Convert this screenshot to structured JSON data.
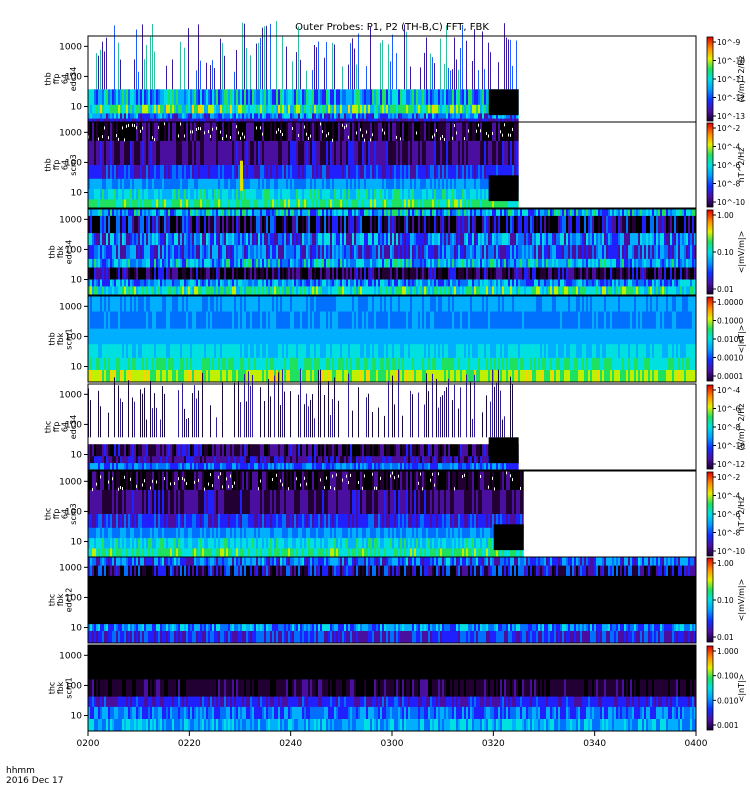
{
  "title": "Outer Probes: P1, P2 (TH-B,C) FFT, FBK",
  "footer": {
    "time_format": "hhmm",
    "date": "2016 Dec 17"
  },
  "chart_data": {
    "type": "heatmap",
    "x_ticks": [
      "0200",
      "0220",
      "0240",
      "0300",
      "0320",
      "0340",
      "0400"
    ],
    "panels": [
      {
        "label_lines": [
          "thb",
          "ffp",
          "64",
          "edc34"
        ],
        "y_ticks": [
          "10",
          "100",
          "1000"
        ],
        "colorbar_ticks": [
          "10^-9",
          "10^-10",
          "10^-11",
          "10^-12",
          "10^-13"
        ],
        "colorbar_label": "(V/m)^2/Hz",
        "data_end": "0325",
        "style": "sparse_wave"
      },
      {
        "label_lines": [
          "thb",
          "ffp",
          "64",
          "scm3"
        ],
        "y_ticks": [
          "10",
          "100",
          "1000"
        ],
        "colorbar_ticks": [
          "10^-2",
          "10^-4",
          "10^-6",
          "10^-8",
          "10^-10"
        ],
        "colorbar_label": "nT^2/Hz",
        "data_end": "0325",
        "style": "scm_dense",
        "annotation": "burst near 0230"
      },
      {
        "label_lines": [
          "thb",
          "fbk",
          "edc34"
        ],
        "y_ticks": [
          "10",
          "100",
          "1000"
        ],
        "colorbar_ticks": [
          "1.00",
          "0.10",
          "0.01"
        ],
        "colorbar_label": "<|mV/m|>",
        "data_end": "0400",
        "style": "fbk_edc"
      },
      {
        "label_lines": [
          "thb",
          "fbk",
          "scm1"
        ],
        "y_ticks": [
          "10",
          "100",
          "1000"
        ],
        "colorbar_ticks": [
          "1.0000",
          "0.1000",
          "0.0100",
          "0.0010",
          "0.0001"
        ],
        "colorbar_label": "<|nT|>",
        "data_end": "0400",
        "style": "fbk_scm"
      },
      {
        "label_lines": [
          "thc",
          "ffp",
          "64",
          "edc34"
        ],
        "y_ticks": [
          "10",
          "100",
          "1000"
        ],
        "colorbar_ticks": [
          "10^-4",
          "10^-6",
          "10^-8",
          "10^-10",
          "10^-12"
        ],
        "colorbar_label": "(V/m)^2/Hz",
        "data_end": "0325",
        "style": "sparse_wave_dark"
      },
      {
        "label_lines": [
          "thc",
          "ffp",
          "64",
          "scm3"
        ],
        "y_ticks": [
          "10",
          "100",
          "1000"
        ],
        "colorbar_ticks": [
          "10^-2",
          "10^-4",
          "10^-6",
          "10^-8",
          "10^-10"
        ],
        "colorbar_label": "nT^2/Hz",
        "data_end": "0326",
        "style": "scm_dense"
      },
      {
        "label_lines": [
          "thc",
          "fbk",
          "edc12"
        ],
        "y_ticks": [
          "10",
          "100",
          "1000"
        ],
        "colorbar_ticks": [
          "1.00",
          "0.10",
          "0.01"
        ],
        "colorbar_label": "<|mV/m|>",
        "data_end": "0400",
        "style": "fbk_edc_dark"
      },
      {
        "label_lines": [
          "thc",
          "fbk",
          "scm1"
        ],
        "y_ticks": [
          "10",
          "100",
          "1000"
        ],
        "colorbar_ticks": [
          "1.000",
          "0.100",
          "0.010",
          "0.001"
        ],
        "colorbar_label": "<|nT|>",
        "data_end": "0400",
        "style": "fbk_scm_dark"
      }
    ]
  }
}
